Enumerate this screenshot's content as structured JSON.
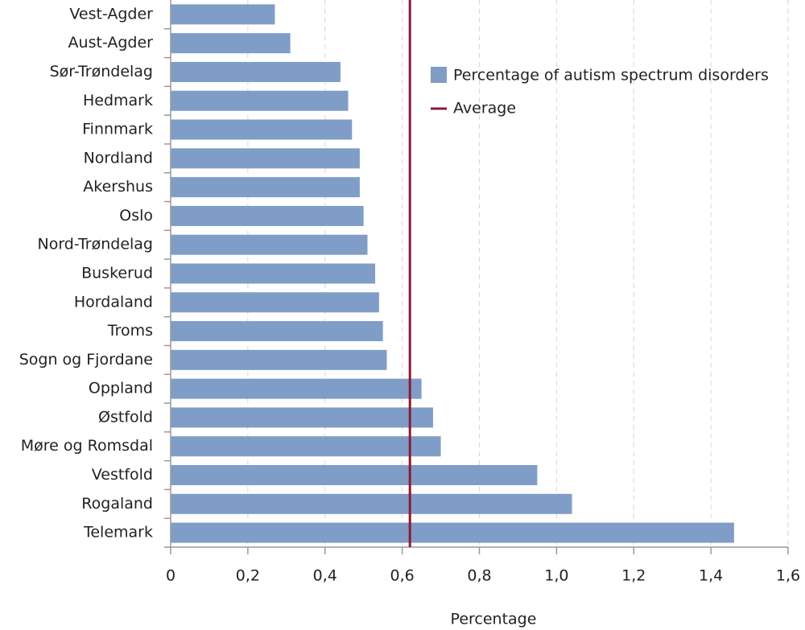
{
  "chart_data": {
    "type": "barh",
    "x_label": "Percentage",
    "categories": [
      "Vest-Agder",
      "Aust-Agder",
      "Sør-Trøndelag",
      "Hedmark",
      "Finnmark",
      "Nordland",
      "Akershus",
      "Oslo",
      "Nord-Trøndelag",
      "Buskerud",
      "Hordaland",
      "Troms",
      "Sogn og Fjordane",
      "Oppland",
      "Østfold",
      "Møre og Romsdal",
      "Vestfold",
      "Rogaland",
      "Telemark"
    ],
    "series": [
      {
        "name": "Percentage of autism spectrum disorders",
        "color": "#7f9dc6",
        "values": [
          0.27,
          0.31,
          0.44,
          0.46,
          0.47,
          0.49,
          0.49,
          0.5,
          0.51,
          0.53,
          0.54,
          0.55,
          0.56,
          0.65,
          0.68,
          0.7,
          0.95,
          1.04,
          1.46
        ]
      }
    ],
    "reference_line": {
      "name": "Average",
      "value": 0.62,
      "color": "#8b1a3a"
    },
    "xlim": [
      0,
      1.6
    ],
    "xticks": [
      0,
      {
        "value": 0.2,
        "label": "0,2"
      },
      {
        "value": 0.4,
        "label": "0,4"
      },
      {
        "value": 0.6,
        "label": "0,6"
      },
      {
        "value": 0.8,
        "label": "0,8"
      },
      {
        "value": 1.0,
        "label": "1,0"
      },
      {
        "value": 1.2,
        "label": "1,2"
      },
      {
        "value": 1.4,
        "label": "1,4"
      },
      {
        "value": 1.6,
        "label": "1,6"
      }
    ],
    "grid": true
  }
}
